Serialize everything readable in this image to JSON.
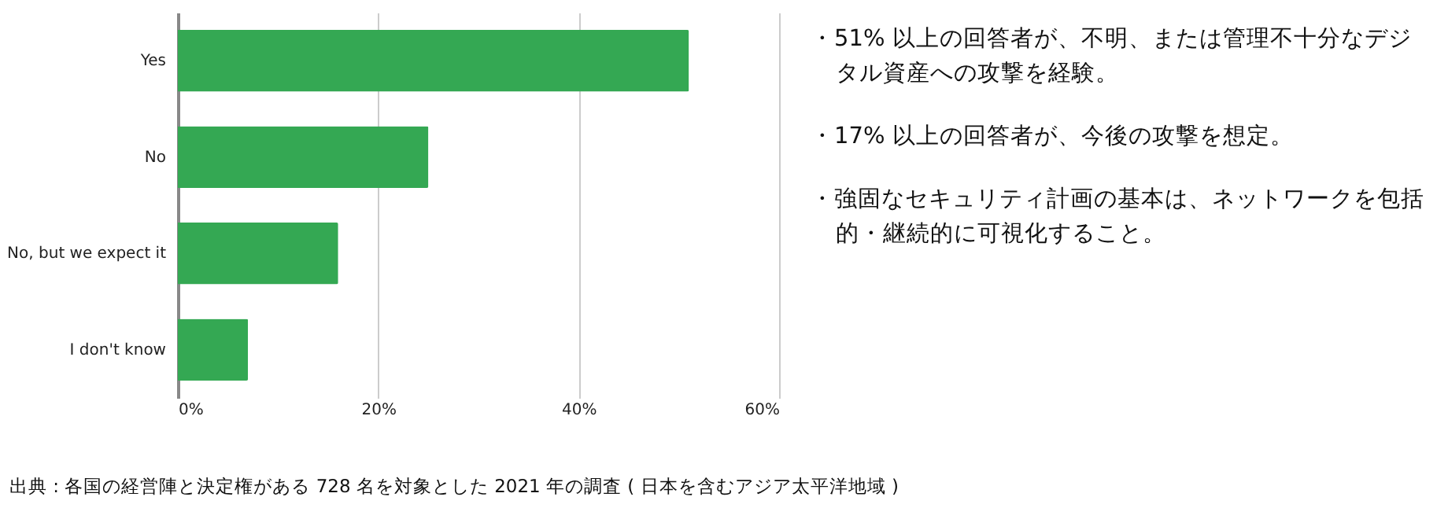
{
  "chart_data": {
    "type": "bar",
    "orientation": "horizontal",
    "categories": [
      "Yes",
      "No",
      "No, but we expect it",
      "I don't know"
    ],
    "values": [
      51,
      25,
      16,
      7
    ],
    "color": "#34a853",
    "xlim": [
      0,
      60
    ],
    "xticks": [
      {
        "value": 0,
        "label": "0%"
      },
      {
        "value": 20,
        "label": "20%"
      },
      {
        "value": 40,
        "label": "40%"
      },
      {
        "value": 60,
        "label": "60%"
      }
    ],
    "grid": "x",
    "annotations": [
      "・51% 以上の回答者が、不明、または管理不十分なデジタル資産への攻撃を経験。",
      "・17% 以上の回答者が、今後の攻撃を想定。",
      "・強固なセキュリティ計画の基本は、ネットワークを包括的・継続的に可視化すること。",
      "出典 : 各国の経営陣と決定権がある 728 名を対象とした 2021 年の調査 ( 日本を含むアジア太平洋地域 )"
    ]
  }
}
